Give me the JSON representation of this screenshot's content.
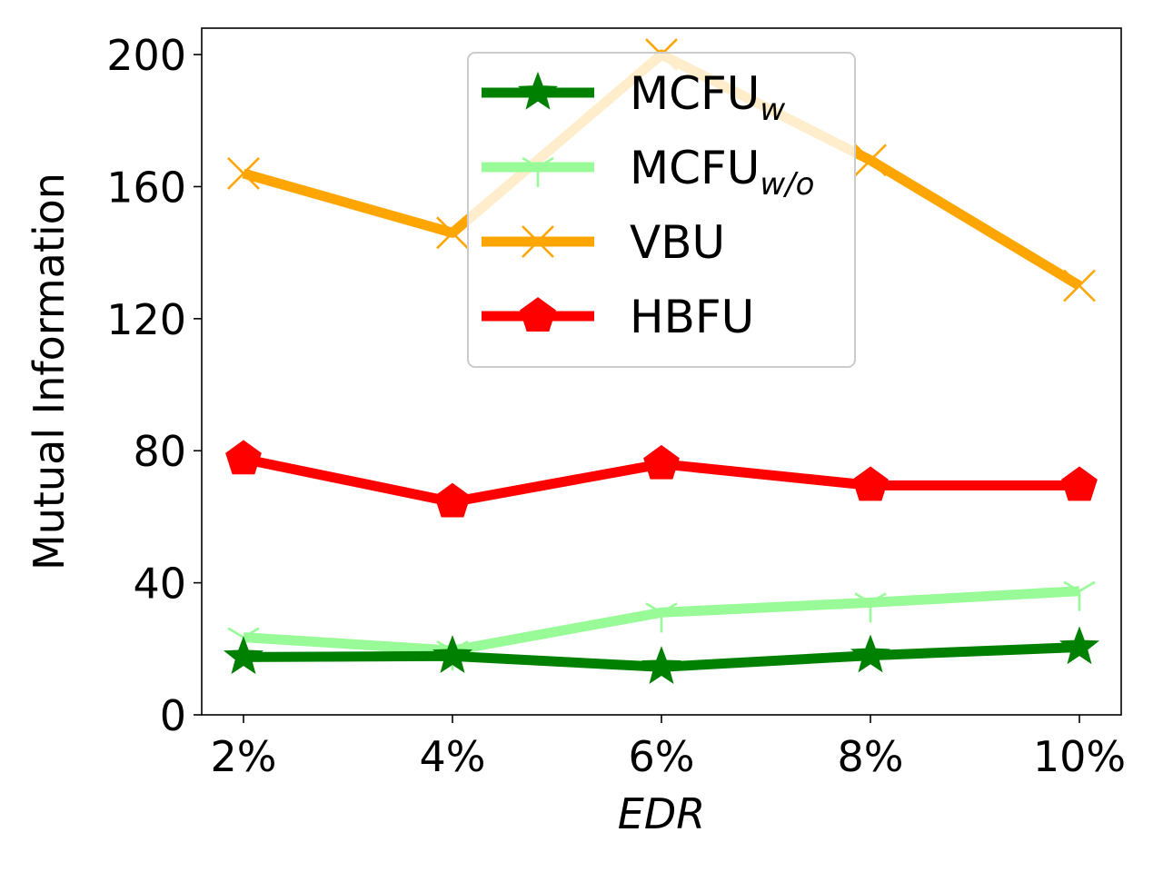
{
  "chart_data": {
    "type": "line",
    "categories": [
      "2%",
      "4%",
      "6%",
      "8%",
      "10%"
    ],
    "xlabel": "EDR",
    "ylabel": "Mutual Information",
    "ylim": [
      0,
      208
    ],
    "yticks": [
      0,
      40,
      80,
      120,
      160,
      200
    ],
    "grid": false,
    "legend_position": "top-center",
    "series": [
      {
        "name": "MCFU",
        "name_sub": "w",
        "color": "#008000",
        "marker": "star",
        "values": [
          17.5,
          17.8,
          14.5,
          18.0,
          20.5
        ]
      },
      {
        "name": "MCFU",
        "name_sub": "w/o",
        "color": "#98fb98",
        "marker": "tri-down",
        "values": [
          23.5,
          19.5,
          31.0,
          34.0,
          37.5
        ]
      },
      {
        "name": "VBU",
        "name_sub": "",
        "color": "#ffa500",
        "marker": "x",
        "values": [
          164.0,
          146.0,
          200.0,
          168.0,
          130.0
        ]
      },
      {
        "name": "HBFU",
        "name_sub": "",
        "color": "#ff0000",
        "marker": "pentagon",
        "values": [
          77.5,
          64.5,
          76.0,
          69.5,
          69.5
        ]
      }
    ]
  }
}
